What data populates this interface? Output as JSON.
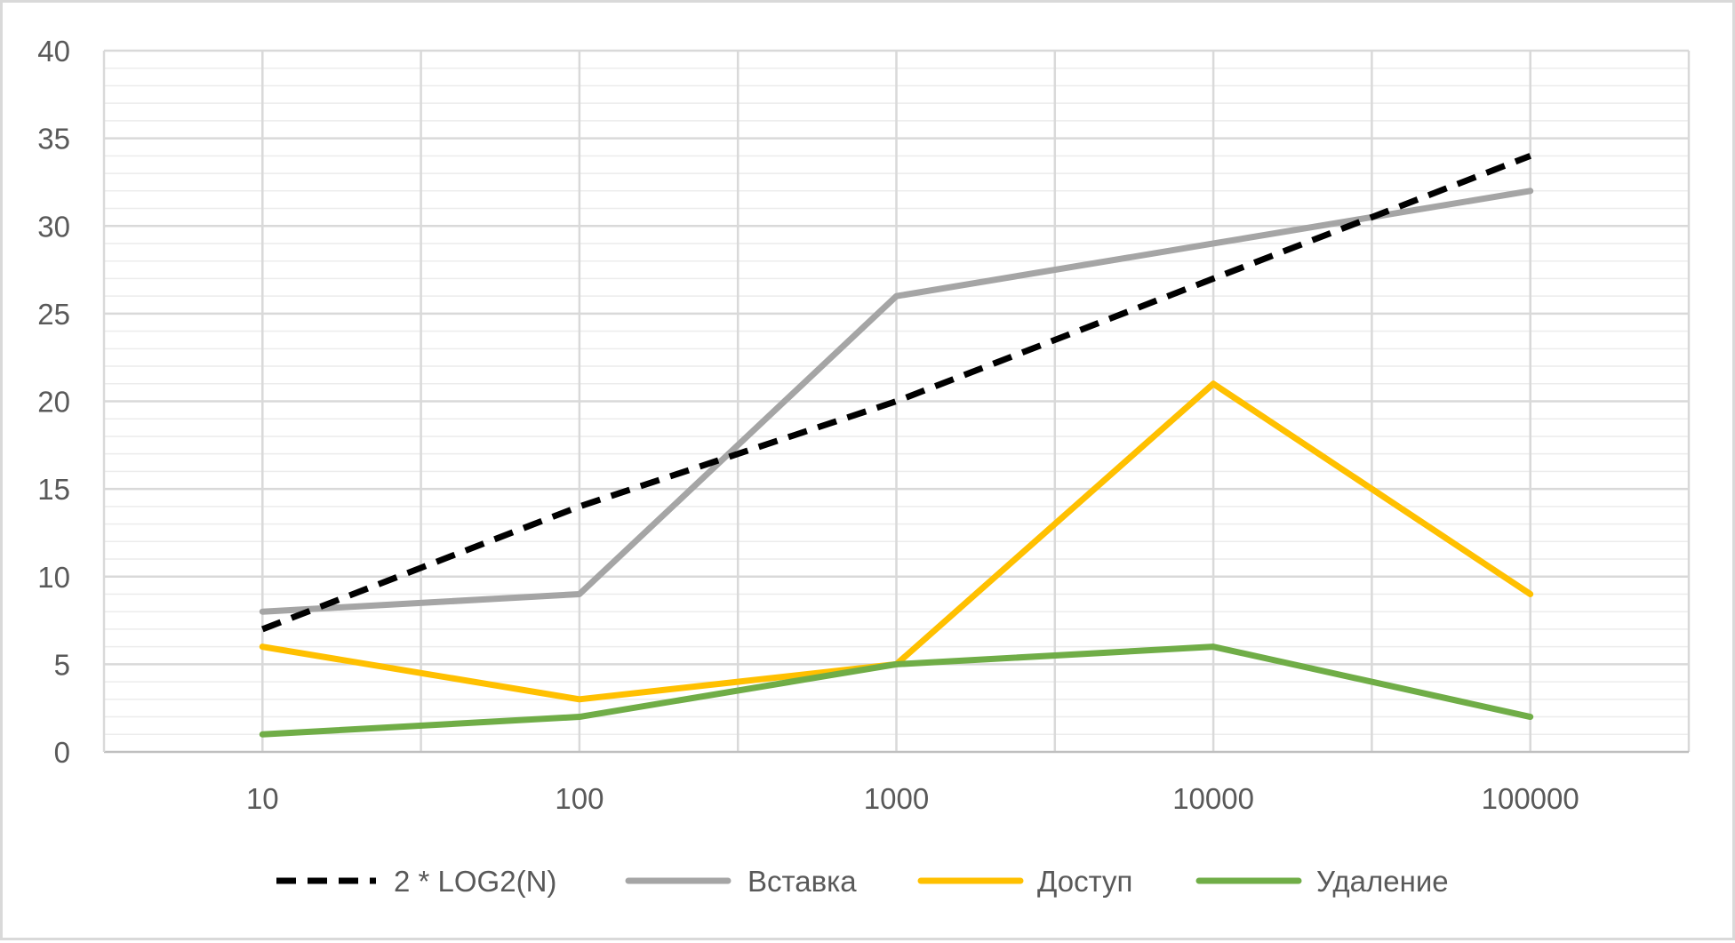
{
  "chart_data": {
    "type": "line",
    "categories": [
      "10",
      "100",
      "1000",
      "10000",
      "100000"
    ],
    "series": [
      {
        "name": "2 * LOG2(N)",
        "values": [
          7,
          14,
          20,
          27,
          34
        ],
        "color": "#000000",
        "dashed": true
      },
      {
        "name": "Вставка",
        "values": [
          8,
          9,
          26,
          29,
          32
        ],
        "color": "#a5a5a5",
        "dashed": false
      },
      {
        "name": "Доступ",
        "values": [
          6,
          3,
          5,
          21,
          9
        ],
        "color": "#ffc000",
        "dashed": false
      },
      {
        "name": "Удаление",
        "values": [
          1,
          2,
          5,
          6,
          2
        ],
        "color": "#70ad47",
        "dashed": false
      }
    ],
    "y_ticks": [
      "0",
      "5",
      "10",
      "15",
      "20",
      "25",
      "30",
      "35",
      "40"
    ],
    "ylim": [
      0,
      40
    ],
    "y_minor_step": 1,
    "grid": true,
    "legend_position": "bottom",
    "title": "",
    "xlabel": "",
    "ylabel": ""
  }
}
